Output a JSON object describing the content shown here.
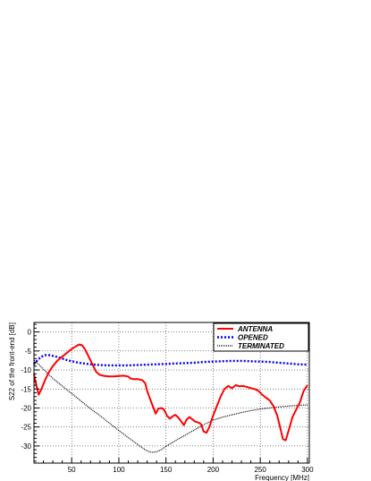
{
  "chart_data": {
    "type": "line",
    "xlabel": "Frequency [MHz]",
    "ylabel": "S22 of the front-end [dB]",
    "xlim": [
      10,
      302
    ],
    "ylim": [
      -34.5,
      2.5
    ],
    "xticks": [
      50,
      100,
      150,
      200,
      250,
      300
    ],
    "yticks": [
      0,
      -5,
      -10,
      -15,
      -20,
      -25,
      -30
    ],
    "grid": true,
    "legend_position": "top-right",
    "series": [
      {
        "name": "ANTENNA",
        "color": "#ff0000",
        "style": "solid",
        "x": [
          10,
          12,
          15,
          18,
          22,
          26,
          30,
          35,
          40,
          45,
          50,
          55,
          58,
          61,
          64,
          68,
          72,
          76,
          80,
          85,
          90,
          95,
          100,
          105,
          110,
          112,
          115,
          120,
          125,
          128,
          130,
          133,
          136,
          139,
          142,
          145,
          148,
          151,
          154,
          157,
          160,
          163,
          166,
          169,
          172,
          175,
          178,
          181,
          184,
          187,
          190,
          193,
          196,
          200,
          204,
          208,
          212,
          216,
          220,
          224,
          228,
          232,
          236,
          240,
          244,
          248,
          252,
          256,
          260,
          264,
          268,
          271,
          274,
          277,
          280,
          284,
          288,
          292,
          296,
          300
        ],
        "y": [
          -11,
          -13.5,
          -16.5,
          -15,
          -12.5,
          -10.5,
          -9,
          -7.5,
          -6.5,
          -5.5,
          -4.5,
          -3.7,
          -3.3,
          -3.5,
          -4.5,
          -6.5,
          -8.5,
          -10.5,
          -11.3,
          -11.6,
          -11.7,
          -11.7,
          -11.6,
          -11.5,
          -11.7,
          -12.2,
          -12.4,
          -12.4,
          -12.7,
          -13.5,
          -15.5,
          -17.5,
          -19.5,
          -21.5,
          -20.2,
          -20.0,
          -20.5,
          -22.0,
          -22.8,
          -22.2,
          -21.8,
          -22.5,
          -23.5,
          -24.5,
          -23.0,
          -22.4,
          -23.0,
          -23.6,
          -23.8,
          -24.2,
          -26.2,
          -26.5,
          -25.0,
          -22.0,
          -19.5,
          -17.0,
          -15.0,
          -14.2,
          -14.8,
          -14.0,
          -14.3,
          -14.2,
          -14.5,
          -14.8,
          -15.0,
          -15.5,
          -16.5,
          -17.3,
          -18.0,
          -19.5,
          -22.0,
          -25.0,
          -28.2,
          -28.5,
          -26.0,
          -22.5,
          -20.5,
          -18.5,
          -15.5,
          -14.0
        ]
      },
      {
        "name": "OPENED",
        "color": "#0000ff",
        "style": "dotted",
        "x": [
          10,
          14,
          18,
          22,
          26,
          30,
          35,
          40,
          45,
          50,
          60,
          70,
          80,
          90,
          100,
          110,
          120,
          130,
          140,
          150,
          160,
          170,
          180,
          190,
          200,
          210,
          220,
          230,
          240,
          250,
          260,
          270,
          280,
          290,
          300
        ],
        "y": [
          -8.5,
          -7.3,
          -6.5,
          -6.1,
          -6.1,
          -6.3,
          -6.6,
          -7.0,
          -7.4,
          -7.7,
          -8.2,
          -8.5,
          -8.7,
          -8.8,
          -8.8,
          -8.8,
          -8.7,
          -8.6,
          -8.5,
          -8.4,
          -8.3,
          -8.2,
          -8.1,
          -7.9,
          -7.8,
          -7.7,
          -7.6,
          -7.6,
          -7.7,
          -7.8,
          -7.9,
          -8.1,
          -8.3,
          -8.5,
          -8.6
        ]
      },
      {
        "name": "TERMINATED",
        "color": "#000000",
        "style": "dotted",
        "x": [
          10,
          15,
          20,
          25,
          30,
          40,
          50,
          60,
          70,
          80,
          90,
          100,
          110,
          120,
          125,
          130,
          135,
          140,
          145,
          150,
          160,
          170,
          180,
          190,
          200,
          210,
          220,
          230,
          240,
          250,
          260,
          270,
          280,
          290,
          300
        ],
        "y": [
          -7.5,
          -8.5,
          -9.8,
          -11.0,
          -12.2,
          -14.2,
          -16.2,
          -18.2,
          -20.2,
          -22.0,
          -24.0,
          -25.9,
          -27.8,
          -29.6,
          -30.5,
          -31.3,
          -31.7,
          -31.5,
          -31.0,
          -30.1,
          -28.6,
          -27.2,
          -25.8,
          -24.4,
          -23.2,
          -22.4,
          -21.8,
          -21.2,
          -20.7,
          -20.3,
          -20.0,
          -19.7,
          -19.5,
          -19.3,
          -19.2
        ]
      }
    ]
  }
}
